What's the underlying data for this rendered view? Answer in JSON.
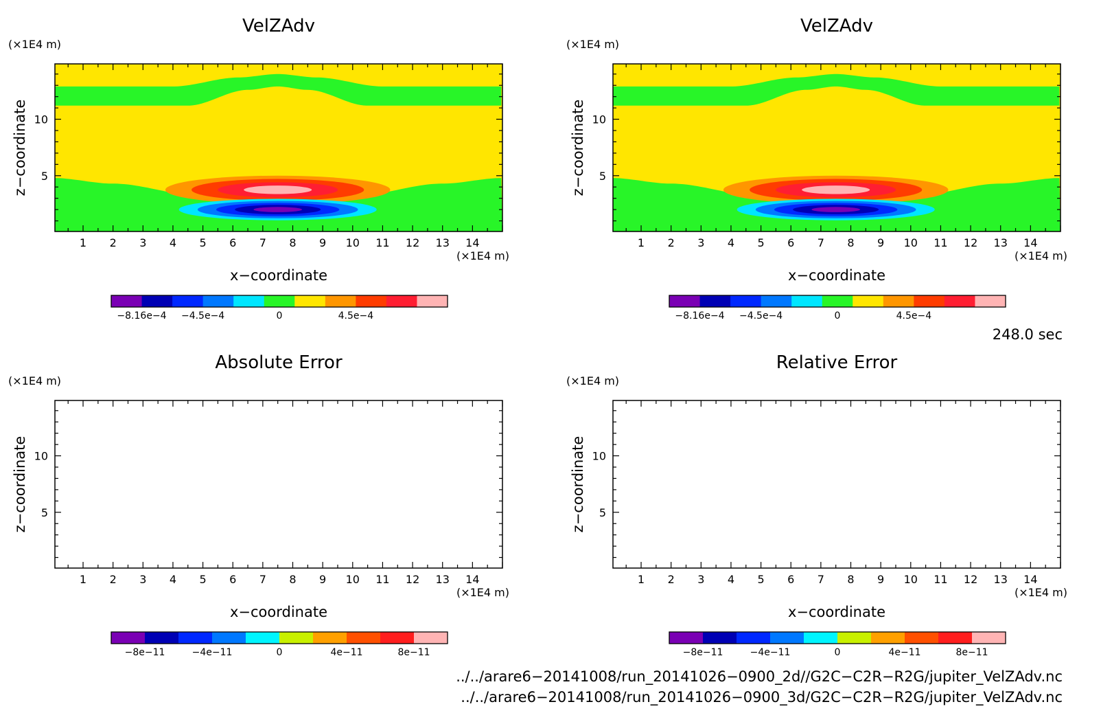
{
  "panels": [
    {
      "key": "p1",
      "title": "VelZAdv",
      "ylabel": "z−coordinate",
      "xlabel": "x−coordinate",
      "yunit": "(×1E4 m)",
      "xunit": "(×1E4 m)",
      "field": "velz",
      "colorbar": {
        "colors": [
          "#7a00b4",
          "#0000b4",
          "#0028ff",
          "#0078ff",
          "#00e6ff",
          "#28f528",
          "#ffe600",
          "#ff9600",
          "#ff3c00",
          "#ff1e32",
          "#ffb4b4"
        ],
        "labels": [
          "−8.16e−4",
          "−4.5e−4",
          "0",
          "4.5e−4"
        ]
      }
    },
    {
      "key": "p2",
      "title": "VelZAdv",
      "ylabel": "z−coordinate",
      "xlabel": "x−coordinate",
      "yunit": "(×1E4 m)",
      "xunit": "(×1E4 m)",
      "field": "velz",
      "colorbar": {
        "colors": [
          "#7a00b4",
          "#0000b4",
          "#0028ff",
          "#0078ff",
          "#00e6ff",
          "#28f528",
          "#ffe600",
          "#ff9600",
          "#ff3c00",
          "#ff1e32",
          "#ffb4b4"
        ],
        "labels": [
          "−8.16e−4",
          "−4.5e−4",
          "0",
          "4.5e−4"
        ]
      }
    },
    {
      "key": "p3",
      "title": "Absolute Error",
      "ylabel": "z−coordinate",
      "xlabel": "x−coordinate",
      "yunit": "(×1E4 m)",
      "xunit": "(×1E4 m)",
      "field": "empty",
      "colorbar": {
        "colors": [
          "#7a00b4",
          "#0000b4",
          "#0028ff",
          "#0078ff",
          "#00f5ff",
          "#c8f000",
          "#ffa000",
          "#ff5000",
          "#ff1e1e",
          "#ffb4b4"
        ],
        "labels": [
          "−8e−11",
          "−4e−11",
          "0",
          "4e−11",
          "8e−11"
        ]
      }
    },
    {
      "key": "p4",
      "title": "Relative Error",
      "ylabel": "z−coordinate",
      "xlabel": "x−coordinate",
      "yunit": "(×1E4 m)",
      "xunit": "(×1E4 m)",
      "field": "empty",
      "colorbar": {
        "colors": [
          "#7a00b4",
          "#0000b4",
          "#0028ff",
          "#0078ff",
          "#00f5ff",
          "#c8f000",
          "#ffa000",
          "#ff5000",
          "#ff1e1e",
          "#ffb4b4"
        ],
        "labels": [
          "−8e−11",
          "−4e−11",
          "0",
          "4e−11",
          "8e−11"
        ]
      }
    }
  ],
  "chart_data": {
    "type": "heatmap",
    "x": {
      "ticks": [
        1,
        2,
        3,
        4,
        5,
        6,
        7,
        8,
        9,
        10,
        11,
        12,
        13,
        14
      ],
      "range": [
        0.06,
        15.0
      ]
    },
    "z": {
      "ticks": [
        5,
        10
      ],
      "range": [
        0.06,
        14.9
      ]
    },
    "velz_field": {
      "yellow_band_bottom": [
        [
          0,
          4.8
        ],
        [
          2,
          4.3
        ],
        [
          5,
          3.2
        ],
        [
          7.5,
          2.9
        ],
        [
          10,
          3.2
        ],
        [
          13,
          4.3
        ],
        [
          15,
          4.8
        ]
      ],
      "green_upper_band_bottom": [
        [
          0,
          11.2
        ],
        [
          4.5,
          11.2
        ],
        [
          6.5,
          12.6
        ],
        [
          7.5,
          12.9
        ],
        [
          8.5,
          12.6
        ],
        [
          10.5,
          11.2
        ],
        [
          15,
          11.2
        ]
      ],
      "green_upper_band_top": [
        [
          0,
          12.9
        ],
        [
          4,
          12.9
        ],
        [
          6.2,
          13.7
        ],
        [
          7.5,
          14.0
        ],
        [
          8.8,
          13.7
        ],
        [
          11,
          12.9
        ],
        [
          15,
          12.9
        ]
      ],
      "positive_lobe": {
        "center": [
          7.5,
          3.75
        ],
        "radii": [
          3.75,
          1.25
        ],
        "rings": [
          "#ff9600",
          "#ff3c00",
          "#ff1e32",
          "#ffb4b4"
        ]
      },
      "negative_lobe": {
        "center": [
          7.5,
          2.0
        ],
        "radii": [
          3.3,
          0.95
        ],
        "rings": [
          "#00e6ff",
          "#0078ff",
          "#0028ff",
          "#0000b4",
          "#7a00b4"
        ]
      }
    },
    "annotations": {
      "time": "248.0 sec",
      "files": [
        "../../arare6−20141008/run_20141026−0900_2d//G2C−C2R−R2G/jupiter_VelZAdv.nc",
        "../../arare6−20141008/run_20141026−0900_3d/G2C−C2R−R2G/jupiter_VelZAdv.nc"
      ]
    }
  }
}
